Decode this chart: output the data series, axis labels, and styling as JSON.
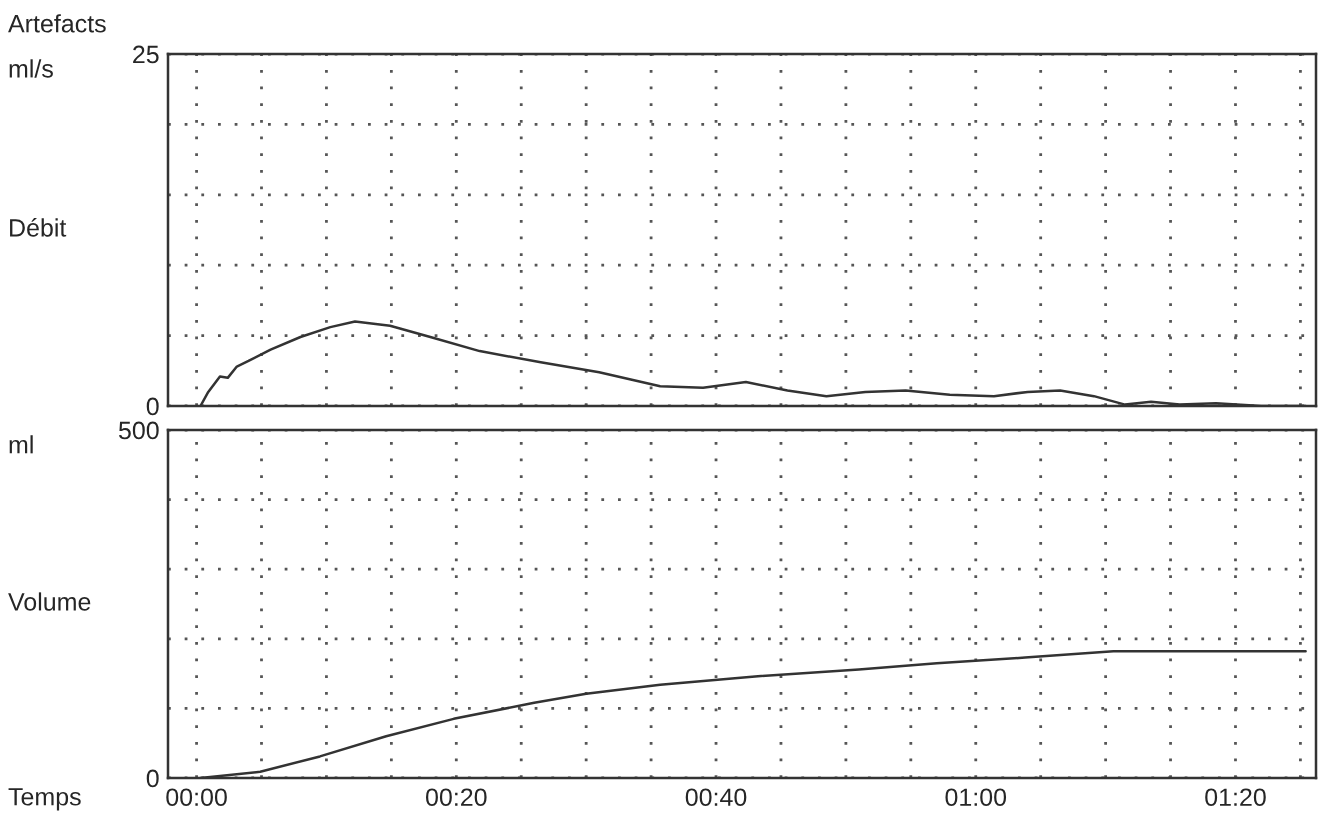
{
  "chart_data": [
    {
      "type": "line",
      "title": "Artefacts",
      "ylabel": "Débit",
      "annotations": [
        "ml/s"
      ],
      "tick_labels": "y",
      "grid": true,
      "xlim": [
        -2.2,
        86.2
      ],
      "xticks": [
        {
          "value": 0,
          "label": null
        },
        {
          "value": 5,
          "label": null
        },
        {
          "value": 10,
          "label": null
        },
        {
          "value": 15,
          "label": null
        },
        {
          "value": 20,
          "label": null
        },
        {
          "value": 25,
          "label": null
        },
        {
          "value": 30,
          "label": null
        },
        {
          "value": 35,
          "label": null
        },
        {
          "value": 40,
          "label": null
        },
        {
          "value": 45,
          "label": null
        },
        {
          "value": 50,
          "label": null
        },
        {
          "value": 55,
          "label": null
        },
        {
          "value": 60,
          "label": null
        },
        {
          "value": 65,
          "label": null
        },
        {
          "value": 70,
          "label": null
        },
        {
          "value": 75,
          "label": null
        },
        {
          "value": 80,
          "label": null
        },
        {
          "value": 85,
          "label": null
        }
      ],
      "ylim": [
        0,
        25
      ],
      "yticks": [
        0,
        {
          "value": 5,
          "label": null
        },
        {
          "value": 10,
          "label": null
        },
        {
          "value": 15,
          "label": null
        },
        {
          "value": 20,
          "label": null
        },
        25
      ],
      "series": [
        {
          "color": "#333333",
          "x": [
            0.3,
            0.9,
            1.8,
            2.4,
            3.1,
            4.0,
            5.7,
            8.0,
            10.3,
            12.2,
            14.9,
            18.0,
            21.8,
            26.5,
            31.0,
            35.7,
            39.0,
            42.3,
            45.5,
            48.5,
            51.5,
            54.6,
            58.0,
            61.4,
            64.0,
            66.5,
            69.1,
            71.5,
            73.5,
            75.7,
            78.5,
            82.0,
            85.4
          ],
          "values": [
            0,
            1.0,
            2.1,
            2.0,
            2.8,
            3.2,
            4.0,
            4.9,
            5.6,
            6.0,
            5.7,
            4.9,
            3.9,
            3.1,
            2.4,
            1.4,
            1.3,
            1.7,
            1.1,
            0.7,
            1.0,
            1.1,
            0.8,
            0.7,
            1.0,
            1.1,
            0.7,
            0.1,
            0.3,
            0.1,
            0.2,
            0,
            0
          ]
        }
      ]
    },
    {
      "type": "line",
      "ylabel": "Volume",
      "xlabel": "Temps",
      "annotations": [
        "ml"
      ],
      "grid": true,
      "xlim": [
        -2.2,
        86.2
      ],
      "xticks": [
        {
          "value": 0,
          "label": "00:00"
        },
        {
          "value": 5,
          "label": null
        },
        {
          "value": 10,
          "label": null
        },
        {
          "value": 15,
          "label": null
        },
        {
          "value": 20,
          "label": "00:20"
        },
        {
          "value": 25,
          "label": null
        },
        {
          "value": 30,
          "label": null
        },
        {
          "value": 35,
          "label": null
        },
        {
          "value": 40,
          "label": "00:40"
        },
        {
          "value": 45,
          "label": null
        },
        {
          "value": 50,
          "label": null
        },
        {
          "value": 55,
          "label": null
        },
        {
          "value": 60,
          "label": "01:00"
        },
        {
          "value": 65,
          "label": null
        },
        {
          "value": 70,
          "label": null
        },
        {
          "value": 75,
          "label": null
        },
        {
          "value": 80,
          "label": "01:20"
        },
        {
          "value": 85,
          "label": null
        }
      ],
      "ylim": [
        0,
        500
      ],
      "yticks": [
        0,
        {
          "value": 100,
          "label": null
        },
        {
          "value": 200,
          "label": null
        },
        {
          "value": 300,
          "label": null
        },
        {
          "value": 400,
          "label": null
        },
        500
      ],
      "series": [
        {
          "color": "#333333",
          "x": [
            0.3,
            4.9,
            9.5,
            14.6,
            19.8,
            26.0,
            30.0,
            35.7,
            43.0,
            51.0,
            57.0,
            63.8,
            70.6,
            78.0,
            85.4
          ],
          "values": [
            0,
            9,
            31,
            60,
            85,
            108,
            121,
            134,
            146,
            156,
            165,
            173,
            182,
            182,
            182
          ]
        }
      ]
    }
  ]
}
